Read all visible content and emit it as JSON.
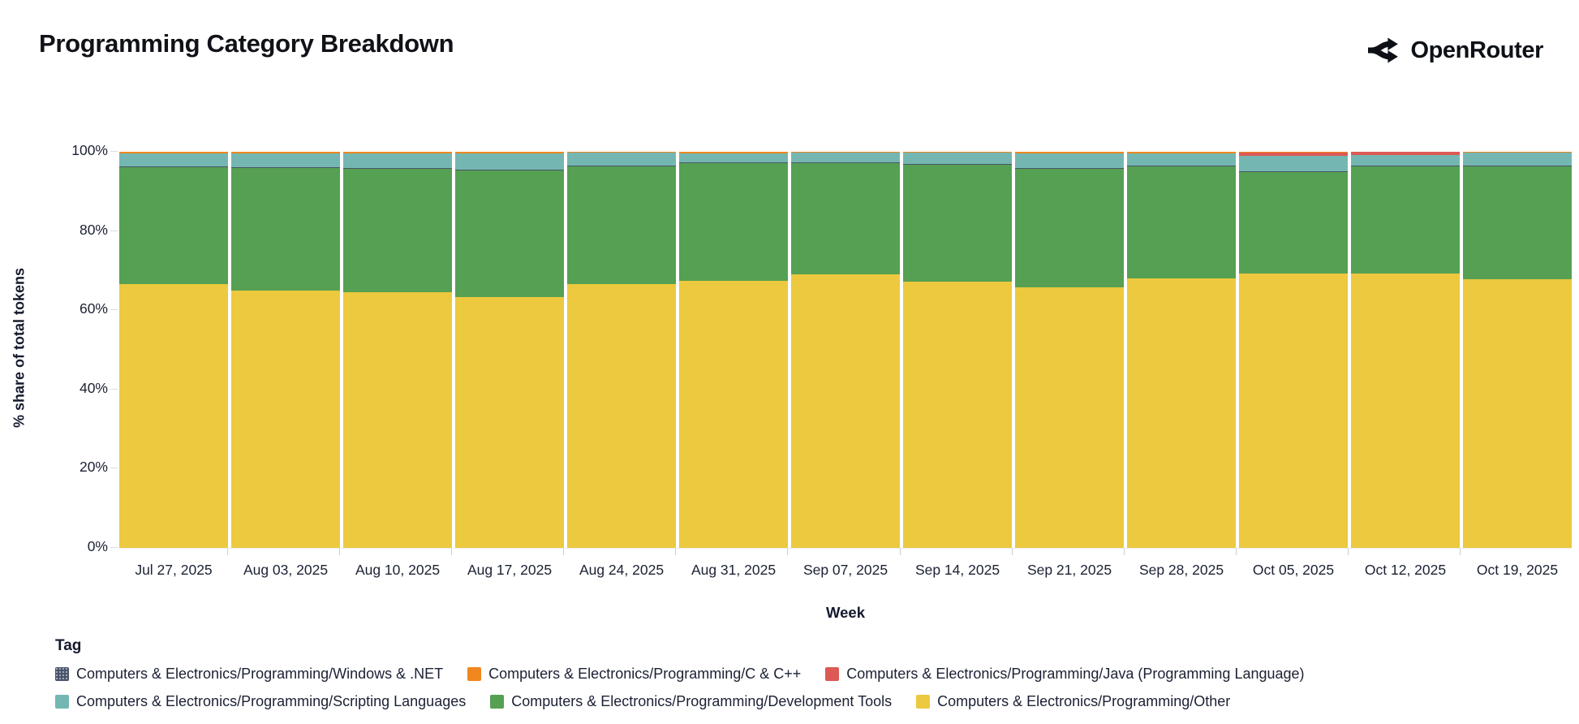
{
  "header": {
    "brand": "OpenRouter"
  },
  "chart_data": {
    "type": "bar",
    "variant": "stacked-100-percent",
    "title": "Programming Category Breakdown",
    "xlabel": "Week",
    "ylabel": "% share of total tokens",
    "ylim": [
      0,
      100
    ],
    "yticks": [
      "0%",
      "20%",
      "40%",
      "60%",
      "80%",
      "100%"
    ],
    "grid": false,
    "categories": [
      "Jul 27, 2025",
      "Aug 03, 2025",
      "Aug 10, 2025",
      "Aug 17, 2025",
      "Aug 24, 2025",
      "Aug 31, 2025",
      "Sep 07, 2025",
      "Sep 14, 2025",
      "Sep 21, 2025",
      "Sep 28, 2025",
      "Oct 05, 2025",
      "Oct 12, 2025",
      "Oct 19, 2025"
    ],
    "stack_order_note": "series listed bottom-to-top as rendered",
    "series": [
      {
        "name": "Computers & Electronics/Programming/Other",
        "color": "#ecc93e",
        "pattern": "solid",
        "values": [
          66.5,
          65.0,
          64.5,
          63.3,
          66.5,
          67.5,
          69.0,
          67.3,
          65.8,
          68.0,
          69.3,
          69.3,
          67.8
        ]
      },
      {
        "name": "Computers & Electronics/Programming/Development Tools",
        "color": "#55a052",
        "pattern": "solid",
        "values": [
          29.6,
          30.9,
          31.2,
          31.9,
          29.9,
          29.6,
          28.2,
          29.5,
          29.9,
          28.3,
          25.6,
          27.1,
          28.6
        ]
      },
      {
        "name": "Computers & Electronics/Programming/Windows & .NET",
        "color": "#4a5568",
        "pattern": "dots",
        "values": [
          0.2,
          0.2,
          0.2,
          0.2,
          0.2,
          0.2,
          0.2,
          0.2,
          0.2,
          0.2,
          0.2,
          0.2,
          0.2
        ]
      },
      {
        "name": "Computers & Electronics/Programming/Scripting Languages",
        "color": "#74b7b2",
        "pattern": "solid",
        "values": [
          3.4,
          3.6,
          3.8,
          4.3,
          3.1,
          2.4,
          2.3,
          2.7,
          3.8,
          3.2,
          3.8,
          2.6,
          3.1
        ]
      },
      {
        "name": "Computers & Electronics/Programming/Java (Programming Language)",
        "color": "#dd5955",
        "pattern": "solid",
        "values": [
          0,
          0,
          0,
          0,
          0,
          0,
          0,
          0,
          0,
          0,
          1.0,
          0.8,
          0
        ]
      },
      {
        "name": "Computers & Electronics/Programming/C & C++",
        "color": "#f0871f",
        "pattern": "solid",
        "values": [
          0.3,
          0.3,
          0.3,
          0.3,
          0.3,
          0.3,
          0.3,
          0.3,
          0.3,
          0.3,
          0.1,
          0.0,
          0.3
        ]
      }
    ],
    "legend": {
      "title": "Tag",
      "position": "bottom-left",
      "display_order": [
        2,
        5,
        4,
        3,
        1,
        0
      ]
    }
  }
}
